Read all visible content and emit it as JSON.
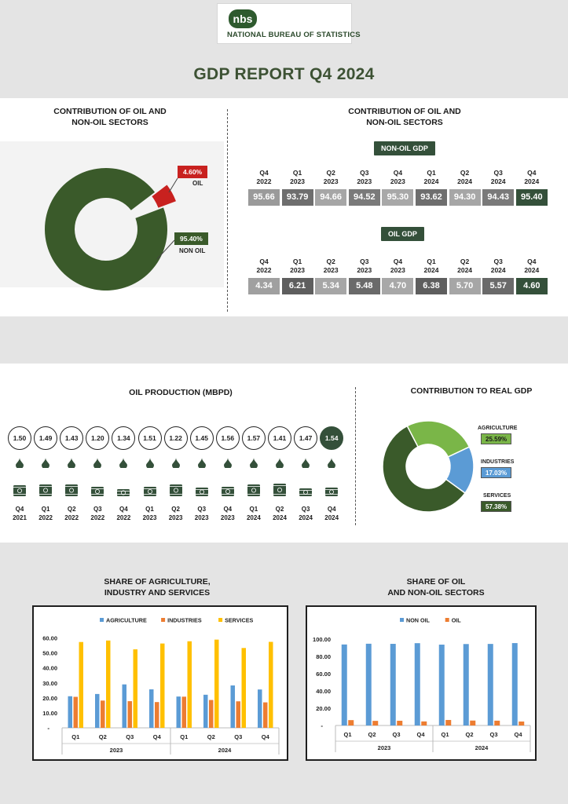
{
  "header": {
    "logo_abbr": "nbs",
    "org_name": "NATIONAL BUREAU OF STATISTICS",
    "report_title": "GDP REPORT Q4 2024"
  },
  "colors": {
    "dark_green": "#3a5a2a",
    "pill_green": "#34503a",
    "red": "#c8211f",
    "light_green": "#7ab648",
    "blue": "#5b9bd5",
    "orange": "#ed7d31",
    "yellow": "#ffc000"
  },
  "section1": {
    "left_title_line1": "CONTRIBUTION OF OIL AND",
    "left_title_line2": "NON-OIL SECTORS",
    "right_title_line1": "CONTRIBUTION OF OIL AND",
    "right_title_line2": "NON-OIL SECTORS",
    "oil_label": "OIL",
    "oil_value": "4.60%",
    "non_oil_label": "NON OIL",
    "non_oil_value": "95.40%",
    "non_oil_gdp_label": "NON-OIL GDP",
    "oil_gdp_label": "OIL GDP",
    "quarters": [
      {
        "q": "Q4",
        "y": "2022"
      },
      {
        "q": "Q1",
        "y": "2023"
      },
      {
        "q": "Q2",
        "y": "2023"
      },
      {
        "q": "Q3",
        "y": "2023"
      },
      {
        "q": "Q4",
        "y": "2023"
      },
      {
        "q": "Q1",
        "y": "2024"
      },
      {
        "q": "Q2",
        "y": "2024"
      },
      {
        "q": "Q3",
        "y": "2024"
      },
      {
        "q": "Q4",
        "y": "2024"
      }
    ],
    "non_oil_values": [
      "95.66",
      "93.79",
      "94.66",
      "94.52",
      "95.30",
      "93.62",
      "94.30",
      "94.43",
      "95.40"
    ],
    "oil_values": [
      "4.34",
      "6.21",
      "5.34",
      "5.48",
      "4.70",
      "6.38",
      "5.70",
      "5.57",
      "4.60"
    ]
  },
  "section2": {
    "oil_title": "OIL PRODUCTION (MBPD)",
    "gdp_title": "CONTRIBUTION TO REAL GDP",
    "production": [
      {
        "v": "1.50",
        "q": "Q4",
        "y": "2021"
      },
      {
        "v": "1.49",
        "q": "Q1",
        "y": "2022"
      },
      {
        "v": "1.43",
        "q": "Q2",
        "y": "2022"
      },
      {
        "v": "1.20",
        "q": "Q3",
        "y": "2022"
      },
      {
        "v": "1.34",
        "q": "Q4",
        "y": "2022"
      },
      {
        "v": "1.51",
        "q": "Q1",
        "y": "2023"
      },
      {
        "v": "1.22",
        "q": "Q2",
        "y": "2023"
      },
      {
        "v": "1.45",
        "q": "Q3",
        "y": "2023"
      },
      {
        "v": "1.56",
        "q": "Q4",
        "y": "2023"
      },
      {
        "v": "1.57",
        "q": "Q1",
        "y": "2024"
      },
      {
        "v": "1.41",
        "q": "Q2",
        "y": "2024"
      },
      {
        "v": "1.47",
        "q": "Q3",
        "y": "2024"
      },
      {
        "v": "1.54",
        "q": "Q4",
        "y": "2024"
      }
    ],
    "agriculture_label": "AGRICULTURE",
    "agriculture_value": "25.59%",
    "industries_label": "INDUSTRIES",
    "industries_value": "17.03%",
    "services_label": "SERVICES",
    "services_value": "57.38%"
  },
  "section3": {
    "left_title_line1": "SHARE OF AGRICULTURE,",
    "left_title_line2": "INDUSTRY AND SERVICES",
    "right_title_line1": "SHARE OF OIL",
    "right_title_line2": "AND NON-OIL SECTORS"
  },
  "chart_data": [
    {
      "type": "pie",
      "title": "CONTRIBUTION OF OIL AND NON-OIL SECTORS",
      "categories": [
        "OIL",
        "NON OIL"
      ],
      "values": [
        4.6,
        95.4
      ]
    },
    {
      "type": "pie",
      "title": "CONTRIBUTION TO REAL GDP",
      "categories": [
        "AGRICULTURE",
        "INDUSTRIES",
        "SERVICES"
      ],
      "values": [
        25.59,
        17.03,
        57.38
      ]
    },
    {
      "type": "bar",
      "title": "SHARE OF AGRICULTURE, INDUSTRY AND SERVICES",
      "categories": [
        "Q1",
        "Q2",
        "Q3",
        "Q4",
        "Q1",
        "Q2",
        "Q3",
        "Q4"
      ],
      "groups": [
        "2023",
        "2024"
      ],
      "series": [
        {
          "name": "AGRICULTURE",
          "values": [
            21.1,
            22.6,
            29.0,
            25.7,
            20.9,
            22.1,
            28.3,
            25.6
          ]
        },
        {
          "name": "INDUSTRIES",
          "values": [
            20.7,
            18.2,
            17.8,
            17.2,
            20.8,
            18.6,
            17.7,
            17.0
          ]
        },
        {
          "name": "SERVICES",
          "values": [
            57.3,
            58.3,
            52.4,
            56.3,
            57.8,
            58.9,
            53.3,
            57.4
          ]
        }
      ],
      "yticks": [
        "10.00",
        "20.00",
        "30.00",
        "40.00",
        "50.00",
        "60.00"
      ],
      "zero_label": "-",
      "ylim": [
        0,
        65
      ]
    },
    {
      "type": "bar",
      "title": "SHARE OF OIL AND NON-OIL SECTORS",
      "categories": [
        "Q1",
        "Q2",
        "Q3",
        "Q4",
        "Q1",
        "Q2",
        "Q3",
        "Q4"
      ],
      "groups": [
        "2023",
        "2024"
      ],
      "series": [
        {
          "name": "NON OIL",
          "values": [
            93.79,
            94.66,
            94.52,
            95.3,
            93.62,
            94.3,
            94.43,
            95.4
          ]
        },
        {
          "name": "OIL",
          "values": [
            6.21,
            5.34,
            5.48,
            4.7,
            6.38,
            5.7,
            5.57,
            4.6
          ]
        }
      ],
      "yticks": [
        "20.00",
        "40.00",
        "60.00",
        "80.00",
        "100.00"
      ],
      "zero_label": "-",
      "ylim": [
        0,
        110
      ]
    }
  ]
}
